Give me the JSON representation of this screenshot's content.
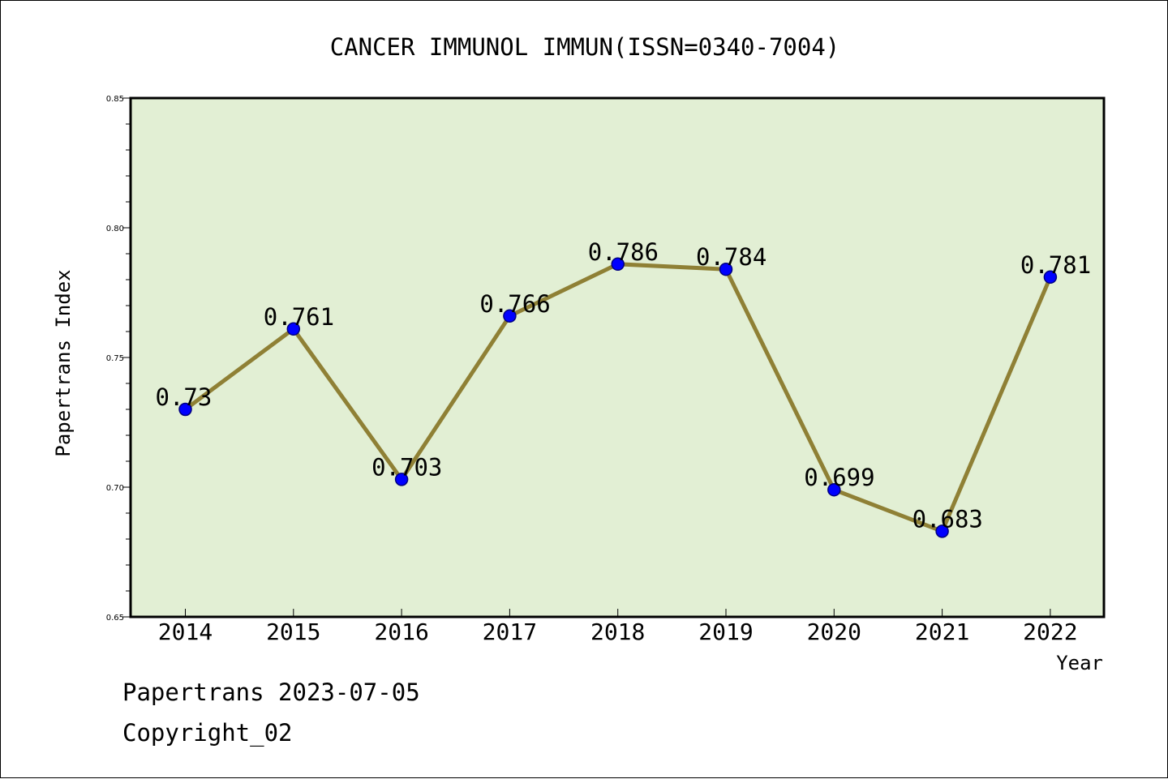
{
  "chart_data": {
    "type": "line",
    "title": "CANCER IMMUNOL IMMUN(ISSN=0340-7004)",
    "xlabel": "Year",
    "ylabel": "Papertrans Index",
    "categories": [
      "2014",
      "2015",
      "2016",
      "2017",
      "2018",
      "2019",
      "2020",
      "2021",
      "2022"
    ],
    "series": [
      {
        "values": [
          0.73,
          0.761,
          0.703,
          0.766,
          0.786,
          0.784,
          0.699,
          0.683,
          0.781
        ]
      }
    ],
    "data_labels": [
      "0.73",
      "0.761",
      "0.703",
      "0.766",
      "0.786",
      "0.784",
      "0.699",
      "0.683",
      "0.781"
    ],
    "ylim": [
      0.65,
      0.85
    ],
    "yticks": [
      "0.65",
      "0.70",
      "0.75",
      "0.80",
      "0.85"
    ],
    "grid": false,
    "colors": {
      "plot_background": "#e2efd4",
      "line": "#8f8035",
      "marker": "#0000ff",
      "marker_edge": "#000080",
      "axis": "#000000"
    }
  },
  "footer": {
    "source": "Papertrans 2023-07-05",
    "copyright": "Copyright_02"
  }
}
